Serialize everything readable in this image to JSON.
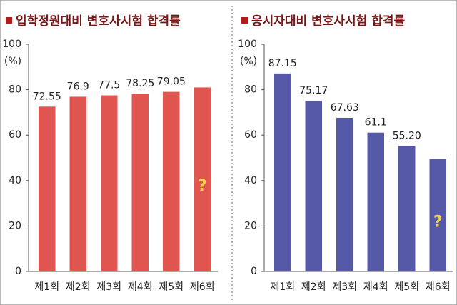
{
  "chart_data": [
    {
      "type": "bar",
      "title": "입학정원대비 변호사시험 합격률",
      "ylabel": "(%)",
      "categories": [
        "제1회",
        "제2회",
        "제3회",
        "제4회",
        "제5회",
        "제6회"
      ],
      "values": [
        72.55,
        76.9,
        77.5,
        78.25,
        79.05,
        81
      ],
      "value_labels": [
        "72.55",
        "76.9",
        "77.5",
        "78.25",
        "79.05",
        null
      ],
      "annotation": "?",
      "color": "#e05550",
      "ylim": [
        0,
        100
      ],
      "yticks": [
        0,
        20,
        40,
        60,
        80,
        100
      ],
      "grid": false
    },
    {
      "type": "bar",
      "title": "응시자대비 변호사시험 합격률",
      "ylabel": "(%)",
      "categories": [
        "제1회",
        "제2회",
        "제3회",
        "제4회",
        "제5회",
        "제6회"
      ],
      "values": [
        87.15,
        75.17,
        67.63,
        61.1,
        55.2,
        49.5
      ],
      "value_labels": [
        "87.15",
        "75.17",
        "67.63",
        "61.1",
        "55.20",
        null
      ],
      "annotation": "?",
      "color": "#5658a8",
      "ylim": [
        0,
        100
      ],
      "yticks": [
        0,
        20,
        40,
        60,
        80,
        100
      ],
      "grid": false
    }
  ]
}
